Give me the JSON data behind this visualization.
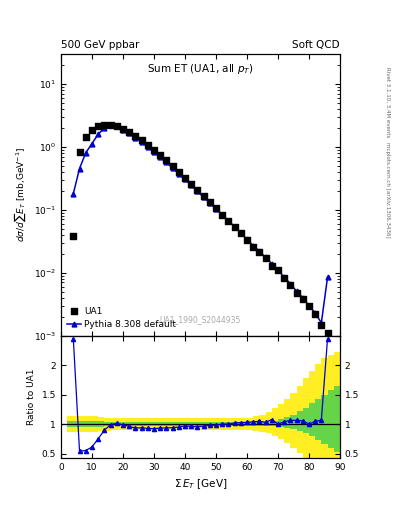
{
  "title_left": "500 GeV ppbar",
  "title_right": "Soft QCD",
  "plot_title": "Sum ET (UA1, all p_{T})",
  "watermark": "UA1_1990_S2044935",
  "right_label_top": "Rivet 3.1.10, 3.4M events",
  "right_label_bot": "mcplots.cern.ch [arXiv:1306.3436]",
  "xlabel": "Σ E_T [GeV]",
  "ylabel": "dσ/dsum E_T [mb,GeV^{-1}]",
  "ylabel_ratio": "Ratio to UA1",
  "ua1_x": [
    4,
    6,
    8,
    10,
    12,
    14,
    16,
    18,
    20,
    22,
    24,
    26,
    28,
    30,
    32,
    34,
    36,
    38,
    40,
    42,
    44,
    46,
    48,
    50,
    52,
    54,
    56,
    58,
    60,
    62,
    64,
    66,
    68,
    70,
    72,
    74,
    76,
    78,
    80,
    82,
    84,
    86
  ],
  "ua1_y": [
    0.038,
    0.83,
    1.45,
    1.85,
    2.1,
    2.2,
    2.2,
    2.1,
    1.9,
    1.7,
    1.5,
    1.28,
    1.08,
    0.9,
    0.74,
    0.61,
    0.49,
    0.395,
    0.315,
    0.255,
    0.205,
    0.165,
    0.132,
    0.106,
    0.084,
    0.067,
    0.053,
    0.042,
    0.033,
    0.026,
    0.021,
    0.017,
    0.013,
    0.011,
    0.0082,
    0.0063,
    0.0048,
    0.0038,
    0.003,
    0.0022,
    0.0015,
    0.0011
  ],
  "pythia_x": [
    4,
    6,
    8,
    10,
    12,
    14,
    16,
    18,
    20,
    22,
    24,
    26,
    28,
    30,
    32,
    34,
    36,
    38,
    40,
    42,
    44,
    46,
    48,
    50,
    52,
    54,
    56,
    58,
    60,
    62,
    64,
    66,
    68,
    70,
    72,
    74,
    76,
    78,
    80,
    82,
    84,
    86
  ],
  "pythia_y": [
    0.18,
    0.45,
    0.8,
    1.12,
    1.58,
    1.97,
    2.18,
    2.12,
    1.88,
    1.63,
    1.4,
    1.2,
    1.0,
    0.83,
    0.69,
    0.57,
    0.46,
    0.375,
    0.305,
    0.245,
    0.196,
    0.159,
    0.129,
    0.104,
    0.084,
    0.067,
    0.054,
    0.043,
    0.034,
    0.027,
    0.022,
    0.0175,
    0.014,
    0.011,
    0.0085,
    0.0067,
    0.0051,
    0.004,
    0.003,
    0.0023,
    0.0016,
    0.0085
  ],
  "ratio_x": [
    4,
    6,
    8,
    10,
    12,
    14,
    16,
    18,
    20,
    22,
    24,
    26,
    28,
    30,
    32,
    34,
    36,
    38,
    40,
    42,
    44,
    46,
    48,
    50,
    52,
    54,
    56,
    58,
    60,
    62,
    64,
    66,
    68,
    70,
    72,
    74,
    76,
    78,
    80,
    82,
    84,
    86
  ],
  "ratio_y": [
    4.7,
    0.54,
    0.55,
    0.61,
    0.75,
    0.895,
    0.99,
    1.01,
    0.99,
    0.96,
    0.933,
    0.937,
    0.926,
    0.922,
    0.932,
    0.934,
    0.939,
    0.949,
    0.968,
    0.961,
    0.956,
    0.964,
    0.977,
    0.981,
    1.0,
    1.0,
    1.019,
    1.024,
    1.03,
    1.038,
    1.048,
    1.029,
    1.077,
    1.0,
    1.037,
    1.063,
    1.063,
    1.053,
    1.0,
    1.045,
    1.067,
    7.73
  ],
  "ratio_clip_max": 2.45,
  "ratio_clip_min": 0.42,
  "green_band_x": [
    2,
    4,
    6,
    8,
    10,
    12,
    14,
    16,
    18,
    20,
    22,
    24,
    26,
    28,
    30,
    32,
    34,
    36,
    38,
    40,
    42,
    44,
    46,
    48,
    50,
    52,
    54,
    56,
    58,
    60,
    62,
    64,
    66,
    68,
    70,
    72,
    74,
    76,
    78,
    80,
    82,
    84,
    86,
    88,
    90
  ],
  "green_band_lo": [
    0.95,
    0.95,
    0.95,
    0.95,
    0.95,
    0.95,
    0.96,
    0.97,
    0.97,
    0.97,
    0.97,
    0.97,
    0.97,
    0.97,
    0.97,
    0.97,
    0.97,
    0.97,
    0.97,
    0.97,
    0.97,
    0.97,
    0.97,
    0.97,
    0.97,
    0.97,
    0.97,
    0.97,
    0.97,
    0.97,
    0.97,
    0.97,
    0.97,
    0.96,
    0.95,
    0.93,
    0.91,
    0.88,
    0.84,
    0.79,
    0.73,
    0.67,
    0.6,
    0.52,
    0.46
  ],
  "green_band_hi": [
    1.05,
    1.05,
    1.05,
    1.05,
    1.05,
    1.05,
    1.04,
    1.03,
    1.03,
    1.03,
    1.03,
    1.03,
    1.03,
    1.03,
    1.03,
    1.03,
    1.03,
    1.03,
    1.03,
    1.03,
    1.03,
    1.03,
    1.03,
    1.03,
    1.03,
    1.03,
    1.03,
    1.03,
    1.03,
    1.03,
    1.03,
    1.03,
    1.04,
    1.06,
    1.09,
    1.12,
    1.16,
    1.22,
    1.28,
    1.35,
    1.43,
    1.5,
    1.57,
    1.64,
    1.69
  ],
  "yellow_band_x": [
    2,
    4,
    6,
    8,
    10,
    12,
    14,
    16,
    18,
    20,
    22,
    24,
    26,
    28,
    30,
    32,
    34,
    36,
    38,
    40,
    42,
    44,
    46,
    48,
    50,
    52,
    54,
    56,
    58,
    60,
    62,
    64,
    66,
    68,
    70,
    72,
    74,
    76,
    78,
    80,
    82,
    84,
    86,
    88,
    90
  ],
  "yellow_band_lo": [
    0.87,
    0.87,
    0.87,
    0.87,
    0.87,
    0.88,
    0.89,
    0.9,
    0.9,
    0.9,
    0.9,
    0.9,
    0.9,
    0.9,
    0.9,
    0.9,
    0.9,
    0.9,
    0.9,
    0.9,
    0.9,
    0.9,
    0.9,
    0.9,
    0.9,
    0.9,
    0.9,
    0.9,
    0.9,
    0.9,
    0.89,
    0.87,
    0.84,
    0.8,
    0.75,
    0.68,
    0.6,
    0.51,
    0.42,
    0.33,
    0.25,
    0.18,
    0.12,
    0.08,
    0.05
  ],
  "yellow_band_hi": [
    1.13,
    1.13,
    1.13,
    1.13,
    1.13,
    1.12,
    1.11,
    1.1,
    1.1,
    1.1,
    1.1,
    1.1,
    1.1,
    1.1,
    1.1,
    1.1,
    1.1,
    1.1,
    1.1,
    1.1,
    1.1,
    1.1,
    1.1,
    1.1,
    1.1,
    1.1,
    1.1,
    1.1,
    1.1,
    1.11,
    1.13,
    1.16,
    1.21,
    1.27,
    1.34,
    1.43,
    1.53,
    1.65,
    1.78,
    1.9,
    2.02,
    2.12,
    2.18,
    2.22,
    2.24
  ],
  "ua1_color": "#000000",
  "pythia_color": "#0000cc",
  "green_color": "#33cc55",
  "yellow_color": "#ffee22",
  "bg_color": "#ffffff",
  "xlim": [
    0,
    90
  ],
  "ylim_main": [
    0.001,
    30
  ],
  "ylim_ratio": [
    0.42,
    2.5
  ],
  "ratio_yticks": [
    0.5,
    1.0,
    1.5,
    2.0
  ],
  "ratio_ytick_labels": [
    "0.5",
    "1",
    "1.5",
    "2"
  ]
}
